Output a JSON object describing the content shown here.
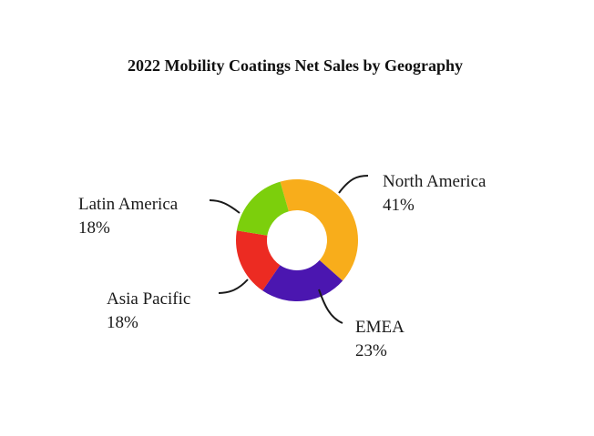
{
  "chart_data": {
    "type": "pie",
    "variant": "donut",
    "title": "2022 Mobility Coatings Net Sales by Geography",
    "slices": [
      {
        "label": "North America",
        "value": 41,
        "display": "41%",
        "color": "#f8ad1b"
      },
      {
        "label": "EMEA",
        "value": 23,
        "display": "23%",
        "color": "#4b16b0"
      },
      {
        "label": "Asia Pacific",
        "value": 18,
        "display": "18%",
        "color": "#ec2b22"
      },
      {
        "label": "Latin America",
        "value": 18,
        "display": "18%",
        "color": "#7ccf0c"
      }
    ],
    "legend": "none"
  }
}
